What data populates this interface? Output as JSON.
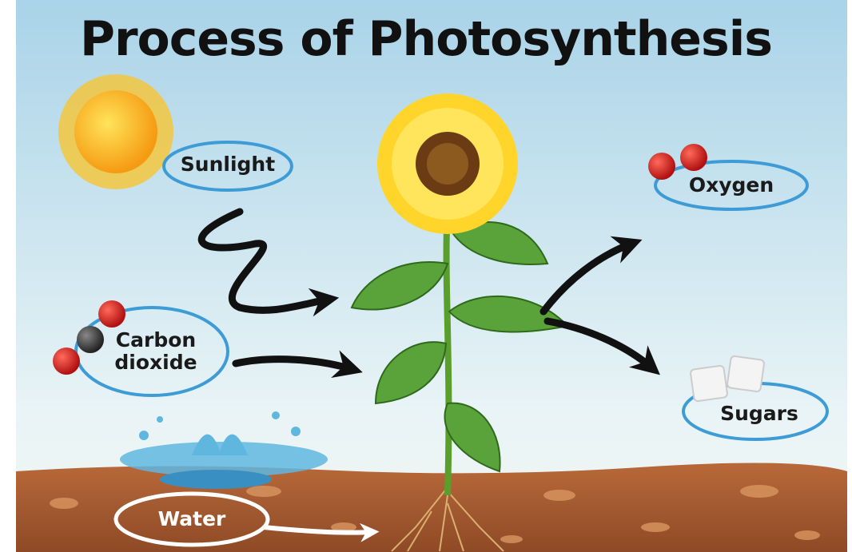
{
  "header": {
    "title": "Process of Photosynthesis"
  },
  "nodes": [
    {
      "label": "Sunlight"
    },
    {
      "label": "Carbon dioxide"
    },
    {
      "label": "Water"
    },
    {
      "label": "Oxygen"
    },
    {
      "label": "Sugars"
    }
  ]
}
